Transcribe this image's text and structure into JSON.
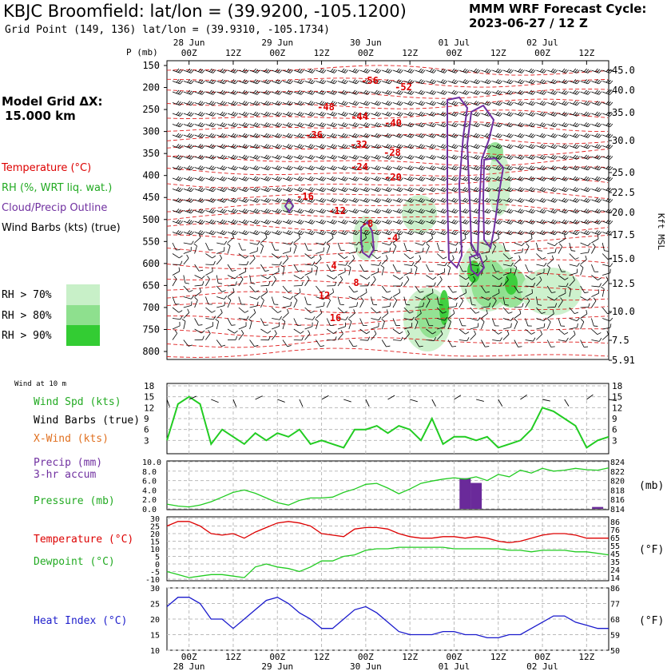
{
  "header": {
    "title": "KBJC Broomfield:  lat/lon = (39.9200, -105.1200)",
    "grid_point": "Grid Point (149, 136) lat/lon = (39.9310, -105.1734)",
    "cycle_line1": "MMM WRF Forecast Cycle:",
    "cycle_line2": "2023-06-27 / 12  Z",
    "model_grid_line1": "Model Grid ΔX:",
    "model_grid_line2": "15.000 km"
  },
  "legend": {
    "temperature": "Temperature (°C)",
    "rh": "RH (%, WRT liq. wat.)",
    "cloud": "Cloud/Precip Outline",
    "wind": "Wind Barbs (kts) (true)",
    "rh70": "RH > 70%",
    "rh80": "RH > 80%",
    "rh90": "RH > 90%",
    "colors": {
      "temperature": "#dd0000",
      "rh": "#22aa22",
      "cloud": "#7030a0",
      "rh70": "#c8f0c8",
      "rh80": "#8ee08e",
      "rh90": "#33cc33"
    }
  },
  "chart_data": [
    {
      "type": "heatmap",
      "name": "cross-section",
      "ylabel_left": "P (mb)",
      "ylabel_right": "Kft MSL",
      "time_labels": [
        "00Z",
        "12Z",
        "00Z",
        "12Z",
        "00Z",
        "12Z",
        "00Z",
        "12Z",
        "00Z",
        "12Z"
      ],
      "date_labels": [
        "28 Jun",
        "29 Jun",
        "30 Jun",
        "01 Jul",
        "02 Jul"
      ],
      "pressure_ticks": [
        "150",
        "200",
        "250",
        "300",
        "350",
        "400",
        "450",
        "500",
        "550",
        "600",
        "650",
        "700",
        "750",
        "800"
      ],
      "kft_ticks": [
        "45.0",
        "40.0",
        "35.0",
        "30.0",
        "25.0",
        "22.5",
        "20.0",
        "17.5",
        "15.0",
        "12.5",
        "10.0",
        "7.5",
        "5.91"
      ],
      "temp_labels": [
        "-56",
        "-52",
        "-48",
        "-44",
        "-40",
        "-36",
        "-32",
        "-28",
        "-24",
        "-20",
        "-16",
        "-12",
        "-8",
        "-4",
        "4",
        "8",
        "12",
        "16"
      ]
    },
    {
      "type": "line",
      "name": "wind",
      "header": "Wind at 10 m",
      "label_speed": "Wind Spd (kts)",
      "label_barbs": "Wind Barbs (true)",
      "label_xwind": "X-Wind (kts)",
      "y_ticks": [
        "18",
        "15",
        "12",
        "9",
        "6",
        "3"
      ],
      "ylim": [
        0,
        18
      ],
      "x": [
        0,
        3,
        6,
        9,
        12,
        15,
        18,
        21,
        24,
        27,
        30,
        33,
        36,
        39,
        42,
        45,
        48,
        51,
        54,
        57,
        60,
        63,
        66,
        69,
        72,
        75,
        78,
        81,
        84,
        87,
        90,
        93,
        96,
        99,
        102,
        105,
        108,
        111,
        114,
        117,
        120
      ],
      "values": [
        3,
        13,
        15,
        13,
        2,
        6,
        4,
        2,
        5,
        3,
        5,
        4,
        6,
        2,
        3,
        2,
        1,
        6,
        6,
        7,
        5,
        7,
        6,
        3,
        9,
        2,
        4,
        4,
        3,
        4,
        1,
        2,
        3,
        6,
        12,
        11,
        9,
        7,
        1,
        3,
        4
      ]
    },
    {
      "type": "line",
      "name": "precip-pressure",
      "label_precip": "Precip (mm)",
      "label_precip2": "3-hr accum",
      "label_pressure": "Pressure (mb)",
      "unit_right": "(mb)",
      "y_ticks_left": [
        "10.0",
        "8.0",
        "6.0",
        "4.0",
        "2.0",
        "0.0"
      ],
      "y_ticks_right": [
        "824",
        "822",
        "820",
        "818",
        "816",
        "814"
      ],
      "ylim_left": [
        0,
        10
      ],
      "ylim_right": [
        814,
        824
      ],
      "precip_x": [
        81,
        84,
        117
      ],
      "precip_values": [
        6.5,
        5.5,
        0.4
      ],
      "x": [
        0,
        3,
        6,
        9,
        12,
        15,
        18,
        21,
        24,
        27,
        30,
        33,
        36,
        39,
        42,
        45,
        48,
        51,
        54,
        57,
        60,
        63,
        66,
        69,
        72,
        75,
        78,
        81,
        84,
        87,
        90,
        93,
        96,
        99,
        102,
        105,
        108,
        111,
        114,
        117,
        120
      ],
      "pressure_values": [
        815.0,
        814.6,
        814.4,
        814.8,
        815.5,
        816.5,
        817.5,
        818.0,
        817.3,
        816.3,
        815.3,
        814.8,
        815.8,
        816.3,
        816.3,
        816.5,
        817.5,
        818.2,
        819.2,
        819.4,
        818.4,
        817.2,
        818.2,
        819.4,
        819.9,
        820.3,
        820.6,
        820.3,
        820.8,
        820.0,
        821.3,
        820.8,
        822.2,
        821.6,
        822.6,
        822.0,
        822.2,
        822.6,
        822.3,
        822.2,
        822.7
      ]
    },
    {
      "type": "line",
      "name": "temp-dewpoint",
      "label_temp": "Temperature (°C)",
      "label_dew": "Dewpoint (°C)",
      "unit_right": "(°F)",
      "y_ticks_left": [
        "30",
        "25",
        "20",
        "15",
        "10",
        "5",
        "0",
        "-5",
        "-10"
      ],
      "y_ticks_right": [
        "86",
        "76",
        "65",
        "55",
        "45",
        "35",
        "24",
        "14"
      ],
      "ylim": [
        -10,
        30
      ],
      "x": [
        0,
        3,
        6,
        9,
        12,
        15,
        18,
        21,
        24,
        27,
        30,
        33,
        36,
        39,
        42,
        45,
        48,
        51,
        54,
        57,
        60,
        63,
        66,
        69,
        72,
        75,
        78,
        81,
        84,
        87,
        90,
        93,
        96,
        99,
        102,
        105,
        108,
        111,
        114,
        117,
        120
      ],
      "temp_values": [
        25,
        28,
        28,
        25,
        20,
        19,
        20,
        17,
        21,
        24,
        27,
        28,
        27,
        25,
        20,
        19,
        18,
        23,
        24,
        24,
        23,
        20,
        18,
        17,
        17,
        18,
        18,
        17,
        18,
        17,
        15,
        14,
        15,
        17,
        19,
        20,
        20,
        19,
        17,
        17,
        17
      ],
      "dew_values": [
        -5,
        -7,
        -9,
        -8,
        -7,
        -7,
        -8,
        -9,
        -2,
        0,
        -2,
        -3,
        -5,
        -2,
        2,
        2,
        5,
        6,
        9,
        10,
        10,
        11,
        11,
        11,
        11,
        11,
        10,
        10,
        10,
        10,
        10,
        9,
        9,
        8,
        9,
        9,
        9,
        8,
        8,
        7,
        6
      ]
    },
    {
      "type": "line",
      "name": "heat-index",
      "label": "Heat Index (°C)",
      "unit_right": "(°F)",
      "y_ticks_left": [
        "30",
        "25",
        "20",
        "15",
        "10"
      ],
      "y_ticks_right": [
        "86",
        "77",
        "68",
        "59",
        "50"
      ],
      "ylim": [
        10,
        30
      ],
      "x": [
        0,
        3,
        6,
        9,
        12,
        15,
        18,
        21,
        24,
        27,
        30,
        33,
        36,
        39,
        42,
        45,
        48,
        51,
        54,
        57,
        60,
        63,
        66,
        69,
        72,
        75,
        78,
        81,
        84,
        87,
        90,
        93,
        96,
        99,
        102,
        105,
        108,
        111,
        114,
        117,
        120
      ],
      "values": [
        24,
        27,
        27,
        25,
        20,
        20,
        17,
        20,
        23,
        26,
        27,
        25,
        22,
        20,
        17,
        17,
        20,
        23,
        24,
        22,
        19,
        16,
        15,
        15,
        15,
        16,
        16,
        15,
        15,
        14,
        14,
        15,
        15,
        17,
        19,
        21,
        21,
        19,
        18,
        17,
        17
      ]
    }
  ]
}
